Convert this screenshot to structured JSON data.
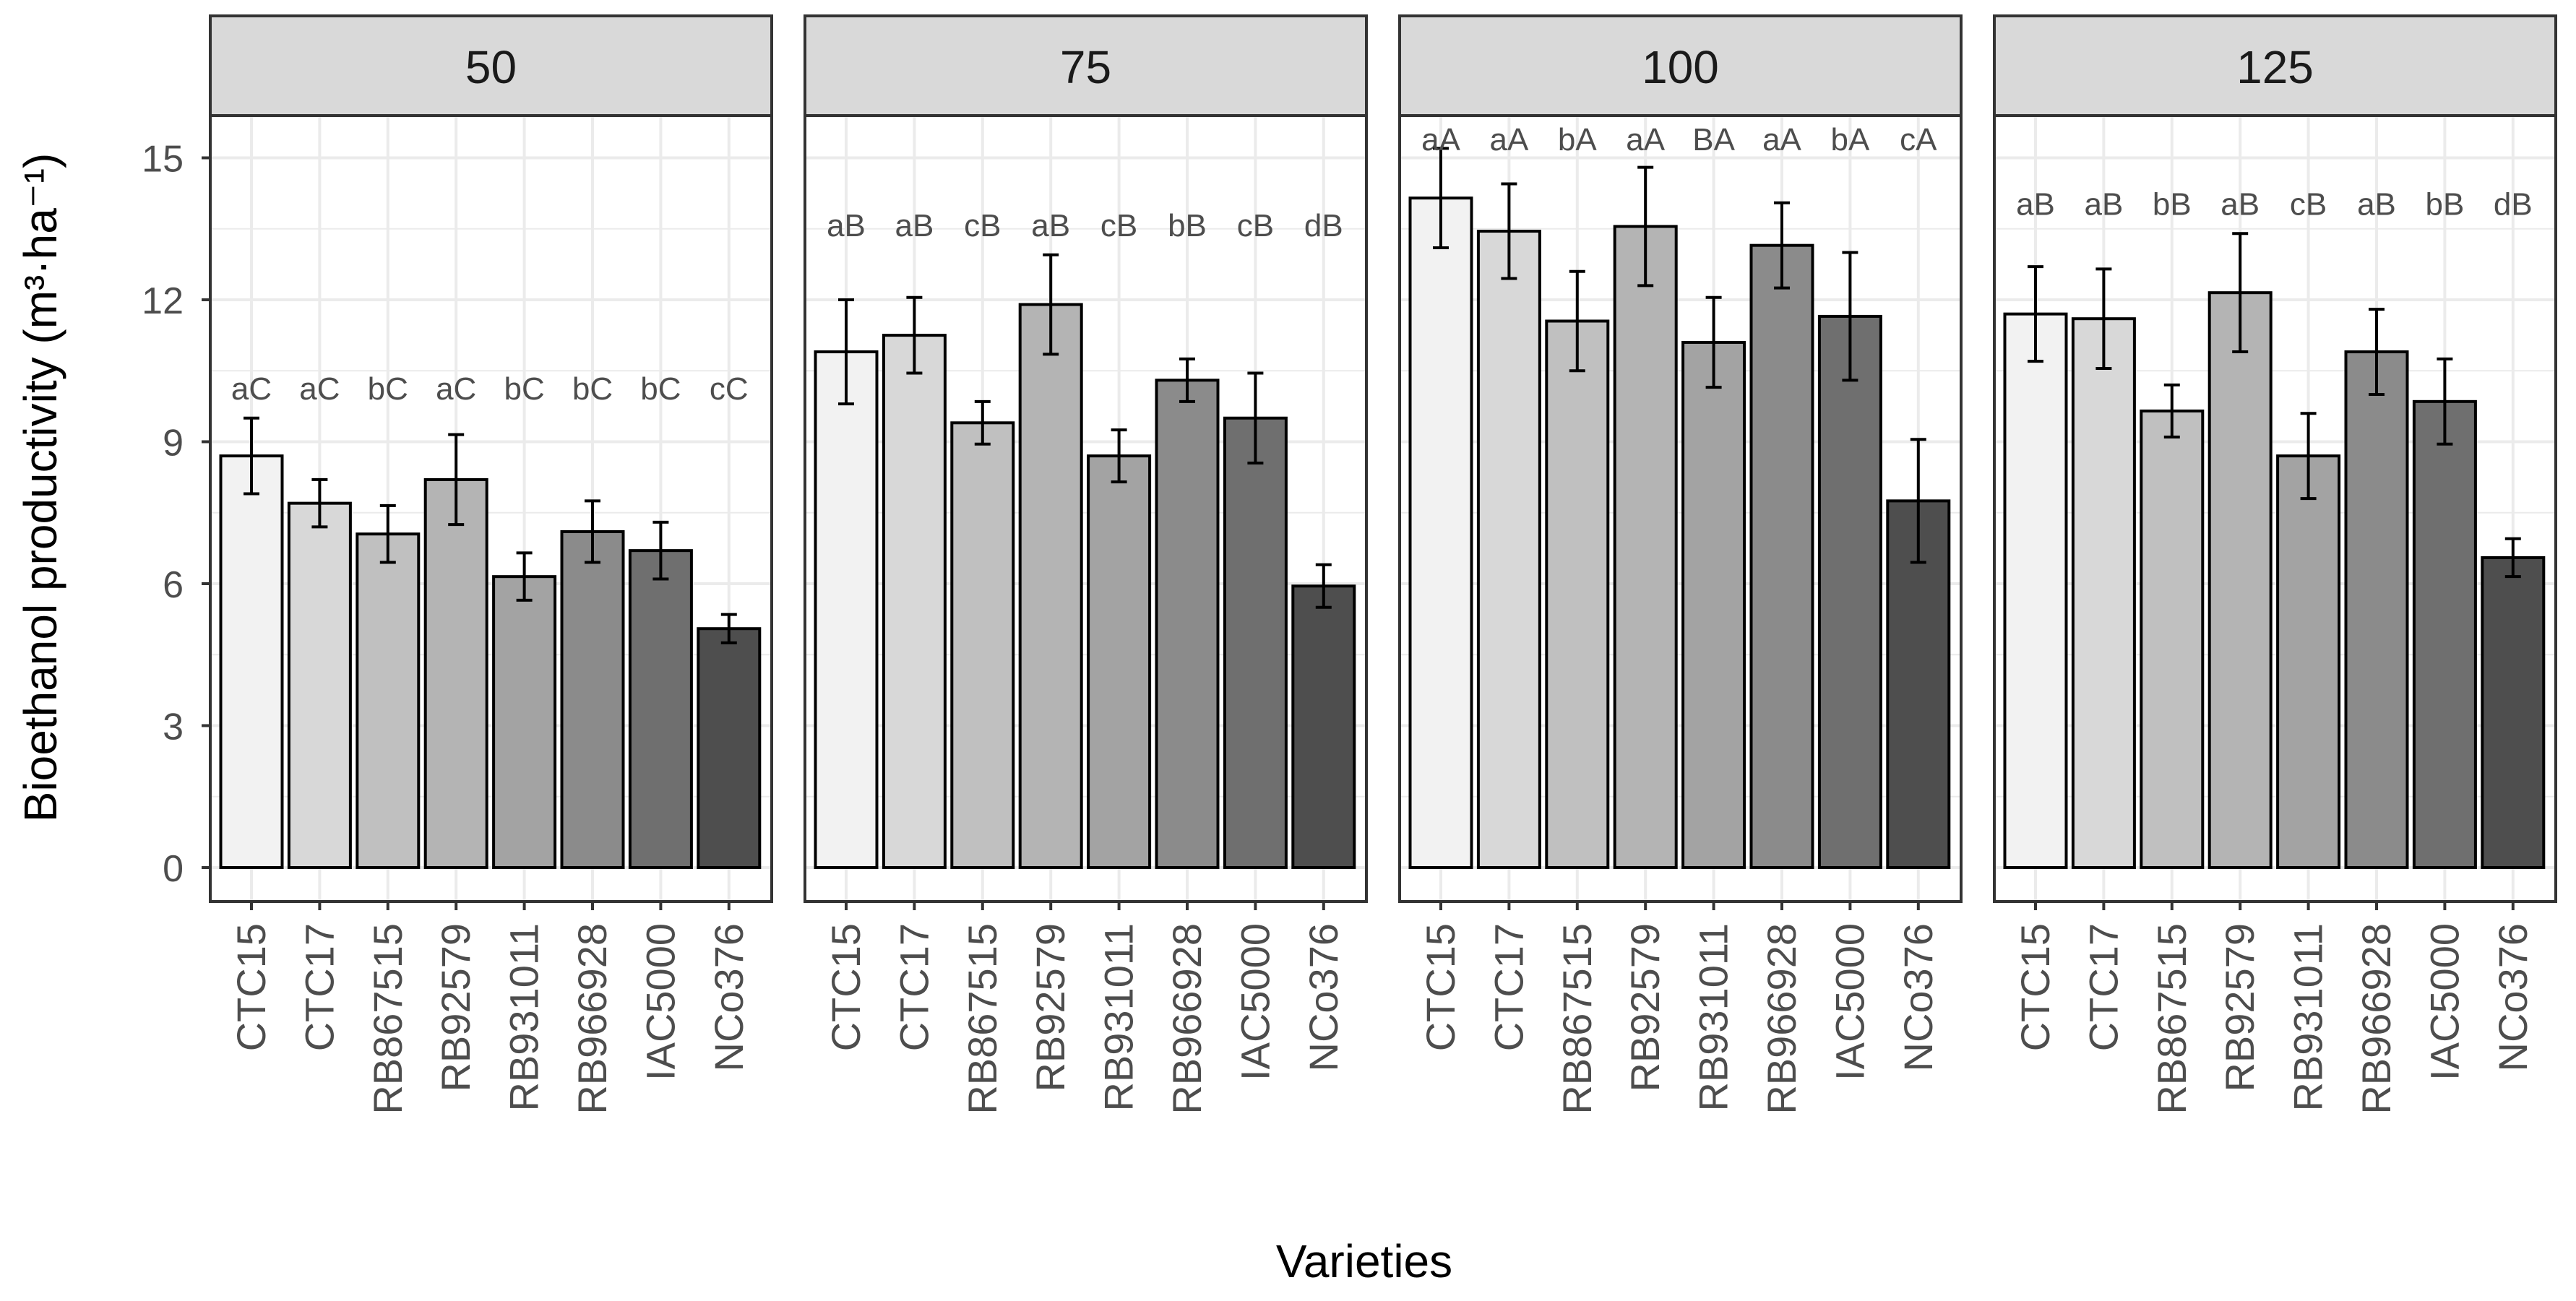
{
  "chart_data": {
    "type": "bar",
    "xlabel": "Varieties",
    "ylabel": "Bioethanol productivity (m³·ha⁻¹)",
    "ylim": [
      0,
      15.8
    ],
    "yticks": [
      0,
      3,
      6,
      9,
      12,
      15
    ],
    "grid": true,
    "error_bars": true,
    "categories": [
      "CTC15",
      "CTC17",
      "RB867515",
      "RB92579",
      "RB931011",
      "RB966928",
      "IAC5000",
      "NCo376"
    ],
    "bar_fills": [
      "#f2f2f2",
      "#d8d8d8",
      "#c0c0c0",
      "#b4b4b4",
      "#a3a3a3",
      "#8b8b8b",
      "#6f6f6f",
      "#4e4e4e"
    ],
    "colors": {
      "panel_strip": "#d9d9d9",
      "grid": "#ebebeb",
      "frame": "#333333",
      "text": "#4d4d4d"
    },
    "panels": [
      {
        "title": "50",
        "values": [
          8.7,
          7.7,
          7.05,
          8.2,
          6.15,
          7.1,
          6.7,
          5.05
        ],
        "errors": [
          0.8,
          0.5,
          0.6,
          0.95,
          0.5,
          0.65,
          0.6,
          0.3
        ],
        "labels": [
          "aC",
          "aC",
          "bC",
          "aC",
          "bC",
          "bC",
          "bC",
          "cC"
        ]
      },
      {
        "title": "75",
        "values": [
          10.9,
          11.25,
          9.4,
          11.9,
          8.7,
          10.3,
          9.5,
          5.95
        ],
        "errors": [
          1.1,
          0.8,
          0.45,
          1.05,
          0.55,
          0.45,
          0.95,
          0.45
        ],
        "labels": [
          "aB",
          "aB",
          "cB",
          "aB",
          "cB",
          "bB",
          "cB",
          "dB"
        ]
      },
      {
        "title": "100",
        "values": [
          14.15,
          13.45,
          11.55,
          13.55,
          11.1,
          13.15,
          11.65,
          7.75
        ],
        "errors": [
          1.05,
          1.0,
          1.05,
          1.25,
          0.95,
          0.9,
          1.35,
          1.3
        ],
        "labels": [
          "aA",
          "aA",
          "bA",
          "aA",
          "BA",
          "aA",
          "bA",
          "cA"
        ]
      },
      {
        "title": "125",
        "values": [
          11.7,
          11.6,
          9.65,
          12.15,
          8.7,
          10.9,
          9.85,
          6.55
        ],
        "errors": [
          1.0,
          1.05,
          0.55,
          1.25,
          0.9,
          0.9,
          0.9,
          0.4
        ],
        "labels": [
          "aB",
          "aB",
          "bB",
          "aB",
          "cB",
          "aB",
          "bB",
          "dB"
        ]
      }
    ]
  }
}
